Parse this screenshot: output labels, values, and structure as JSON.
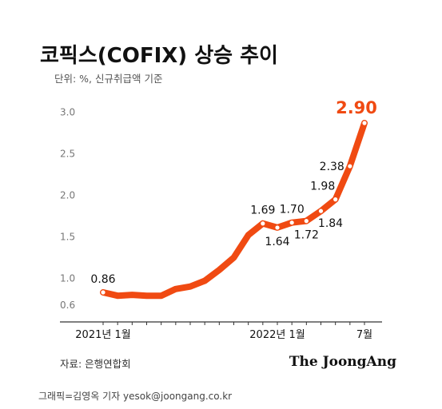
{
  "header": {
    "title": "코픽스(COFIX) 상승 추이",
    "subtitle": "단위: %, 신규취급액 기준"
  },
  "footer": {
    "source": "자료: 은행연합회",
    "brand": "The JoongAng",
    "credit": "그래픽=김영옥 기자 yesok@joongang.co.kr"
  },
  "colors": {
    "line": "#f04a12",
    "highlight_label": "#f04a12",
    "axis": "#333333",
    "grid_label": "#777777"
  },
  "chart_data": {
    "type": "line",
    "title": "코픽스(COFIX) 상승 추이",
    "subtitle": "단위: %, 신규취급액 기준",
    "xlabel": "",
    "ylabel": "",
    "ylim": [
      0.5,
      3.0
    ],
    "yticks": [
      "3.0",
      "2.5",
      "2.0",
      "1.5",
      "1.0",
      "0.6"
    ],
    "ytick_values": [
      3.0,
      2.5,
      2.0,
      1.5,
      1.0,
      0.6
    ],
    "grid": false,
    "x": [
      "2021-01",
      "2021-02",
      "2021-03",
      "2021-04",
      "2021-05",
      "2021-06",
      "2021-07",
      "2021-08",
      "2021-09",
      "2021-10",
      "2021-11",
      "2021-12",
      "2022-01",
      "2022-02",
      "2022-03",
      "2022-04",
      "2022-05",
      "2022-06",
      "2022-07"
    ],
    "values": [
      0.86,
      0.82,
      0.83,
      0.82,
      0.82,
      0.9,
      0.93,
      1.0,
      1.13,
      1.28,
      1.55,
      1.69,
      1.64,
      1.7,
      1.72,
      1.84,
      1.98,
      2.38,
      2.9
    ],
    "xtick_labels": [
      {
        "index": 0,
        "text": "2021년 1월"
      },
      {
        "index": 12,
        "text": "2022년 1월"
      },
      {
        "index": 18,
        "text": "7월"
      }
    ],
    "data_labels": [
      {
        "index": 0,
        "text": "0.86",
        "pos": "above"
      },
      {
        "index": 11,
        "text": "1.69",
        "pos": "above"
      },
      {
        "index": 12,
        "text": "1.64",
        "pos": "below"
      },
      {
        "index": 13,
        "text": "1.70",
        "pos": "above"
      },
      {
        "index": 14,
        "text": "1.72",
        "pos": "below"
      },
      {
        "index": 15,
        "text": "1.84",
        "pos": "below-right"
      },
      {
        "index": 16,
        "text": "1.98",
        "pos": "above-left"
      },
      {
        "index": 17,
        "text": "2.38",
        "pos": "left"
      },
      {
        "index": 18,
        "text": "2.90",
        "pos": "above-left",
        "highlight": true
      }
    ],
    "markers_at": [
      0,
      11,
      12,
      13,
      14,
      15,
      16,
      17,
      18
    ]
  }
}
